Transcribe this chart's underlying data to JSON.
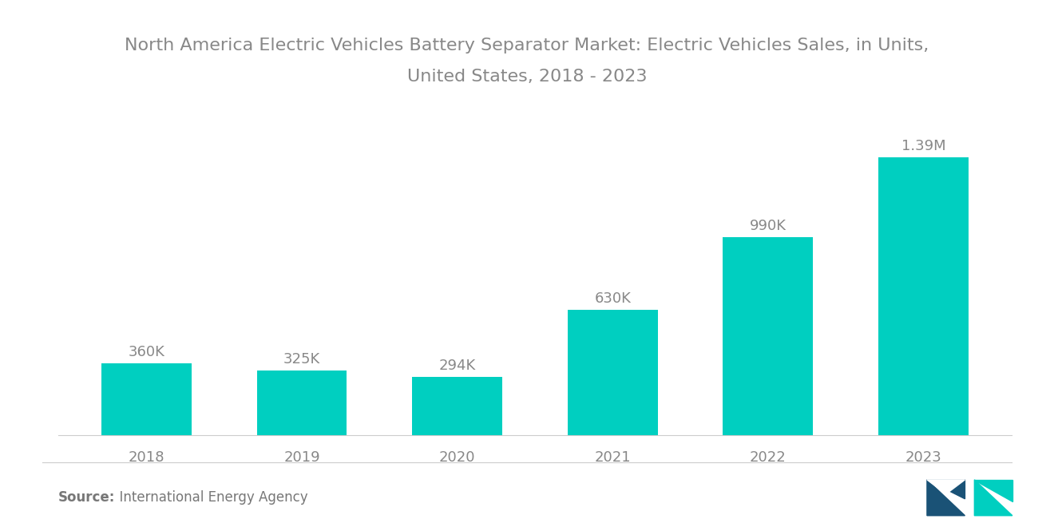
{
  "title_line1": "North America Electric Vehicles Battery Separator Market: Electric Vehicles Sales, in Units,",
  "title_line2": "United States, 2018 - 2023",
  "categories": [
    "2018",
    "2019",
    "2020",
    "2021",
    "2022",
    "2023"
  ],
  "values": [
    360000,
    325000,
    294000,
    630000,
    990000,
    1390000
  ],
  "labels": [
    "360K",
    "325K",
    "294K",
    "630K",
    "990K",
    "1.39M"
  ],
  "bar_color": "#00CFC0",
  "background_color": "#ffffff",
  "title_fontsize": 16,
  "label_fontsize": 13,
  "tick_fontsize": 13,
  "source_bold": "Source:",
  "source_normal": "  International Energy Agency",
  "source_fontsize": 12,
  "ylim": [
    0,
    1700000
  ],
  "bar_width": 0.58,
  "title_color": "#888888",
  "tick_color": "#888888",
  "label_color": "#888888"
}
